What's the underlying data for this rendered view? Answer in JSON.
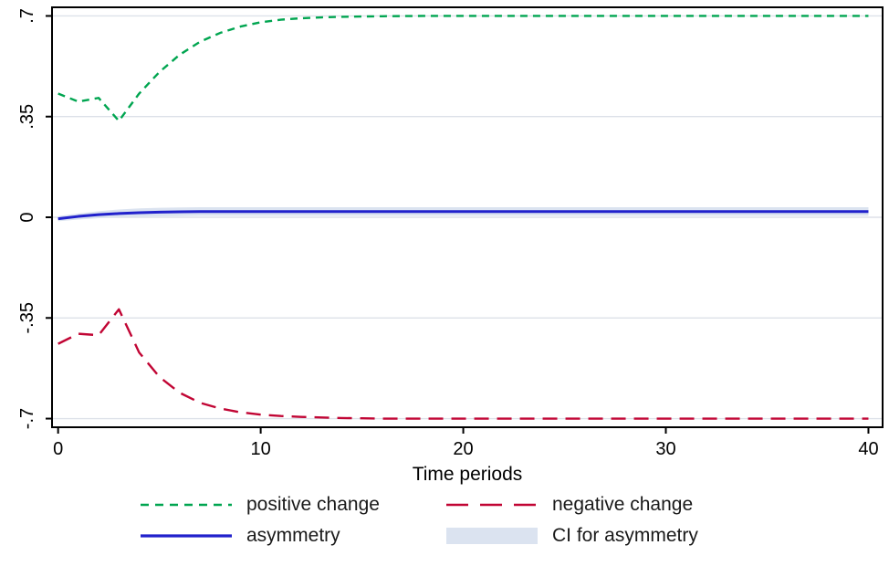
{
  "chart_data": {
    "type": "line",
    "title": "",
    "xlabel": "Time periods",
    "ylabel": "",
    "xlim": [
      -0.3,
      40.7
    ],
    "ylim": [
      -0.73,
      0.73
    ],
    "x_ticks": [
      0,
      10,
      20,
      30,
      40
    ],
    "x_tick_labels": [
      "0",
      "10",
      "20",
      "30",
      "40"
    ],
    "y_ticks": [
      0.7,
      0.35,
      0,
      -0.35,
      -0.7
    ],
    "y_tick_labels": [
      ".7",
      ".35",
      "0",
      "-.35",
      "-.7"
    ],
    "grid": true,
    "gridline_color": "#dde1e9",
    "border_color": "#000000",
    "x": [
      0,
      1,
      2,
      3,
      4,
      5,
      6,
      7,
      8,
      9,
      10,
      11,
      12,
      13,
      14,
      15,
      16,
      18,
      20,
      25,
      30,
      35,
      40
    ],
    "ci": {
      "name": "CI for asymmetry",
      "color": "#dbe3f0",
      "upper": [
        0.004,
        0.013,
        0.021,
        0.027,
        0.031,
        0.033,
        0.034,
        0.035,
        0.035,
        0.035,
        0.035,
        0.035,
        0.035,
        0.035,
        0.035,
        0.035,
        0.035,
        0.035,
        0.035,
        0.035,
        0.035,
        0.035,
        0.035
      ],
      "lower": [
        -0.014,
        -0.008,
        -0.003,
        0.0,
        0.002,
        0.003,
        0.004,
        0.005,
        0.005,
        0.005,
        0.005,
        0.005,
        0.005,
        0.005,
        0.005,
        0.005,
        0.005,
        0.005,
        0.005,
        0.005,
        0.005,
        0.005,
        0.005
      ]
    },
    "series": [
      {
        "name": "positive change",
        "color": "#00a550",
        "dash": "8 6",
        "width": 2.4,
        "y": [
          0.43,
          0.402,
          0.415,
          0.335,
          0.43,
          0.505,
          0.565,
          0.61,
          0.641,
          0.663,
          0.678,
          0.687,
          0.692,
          0.695,
          0.697,
          0.698,
          0.699,
          0.7,
          0.7,
          0.7,
          0.7,
          0.7,
          0.7
        ]
      },
      {
        "name": "negative change",
        "color": "#c10534",
        "dash": "16 9",
        "width": 2.4,
        "y": [
          -0.44,
          -0.405,
          -0.41,
          -0.32,
          -0.47,
          -0.555,
          -0.61,
          -0.645,
          -0.665,
          -0.678,
          -0.686,
          -0.691,
          -0.694,
          -0.696,
          -0.698,
          -0.699,
          -0.7,
          -0.7,
          -0.7,
          -0.7,
          -0.7,
          -0.7,
          -0.7
        ]
      },
      {
        "name": "asymmetry",
        "color": "#2121cc",
        "dash": "",
        "width": 3,
        "y": [
          -0.005,
          0.003,
          0.009,
          0.013,
          0.016,
          0.018,
          0.019,
          0.02,
          0.02,
          0.02,
          0.02,
          0.02,
          0.02,
          0.02,
          0.02,
          0.02,
          0.02,
          0.02,
          0.02,
          0.02,
          0.02,
          0.02,
          0.02
        ]
      }
    ],
    "legend_position": "bottom"
  }
}
